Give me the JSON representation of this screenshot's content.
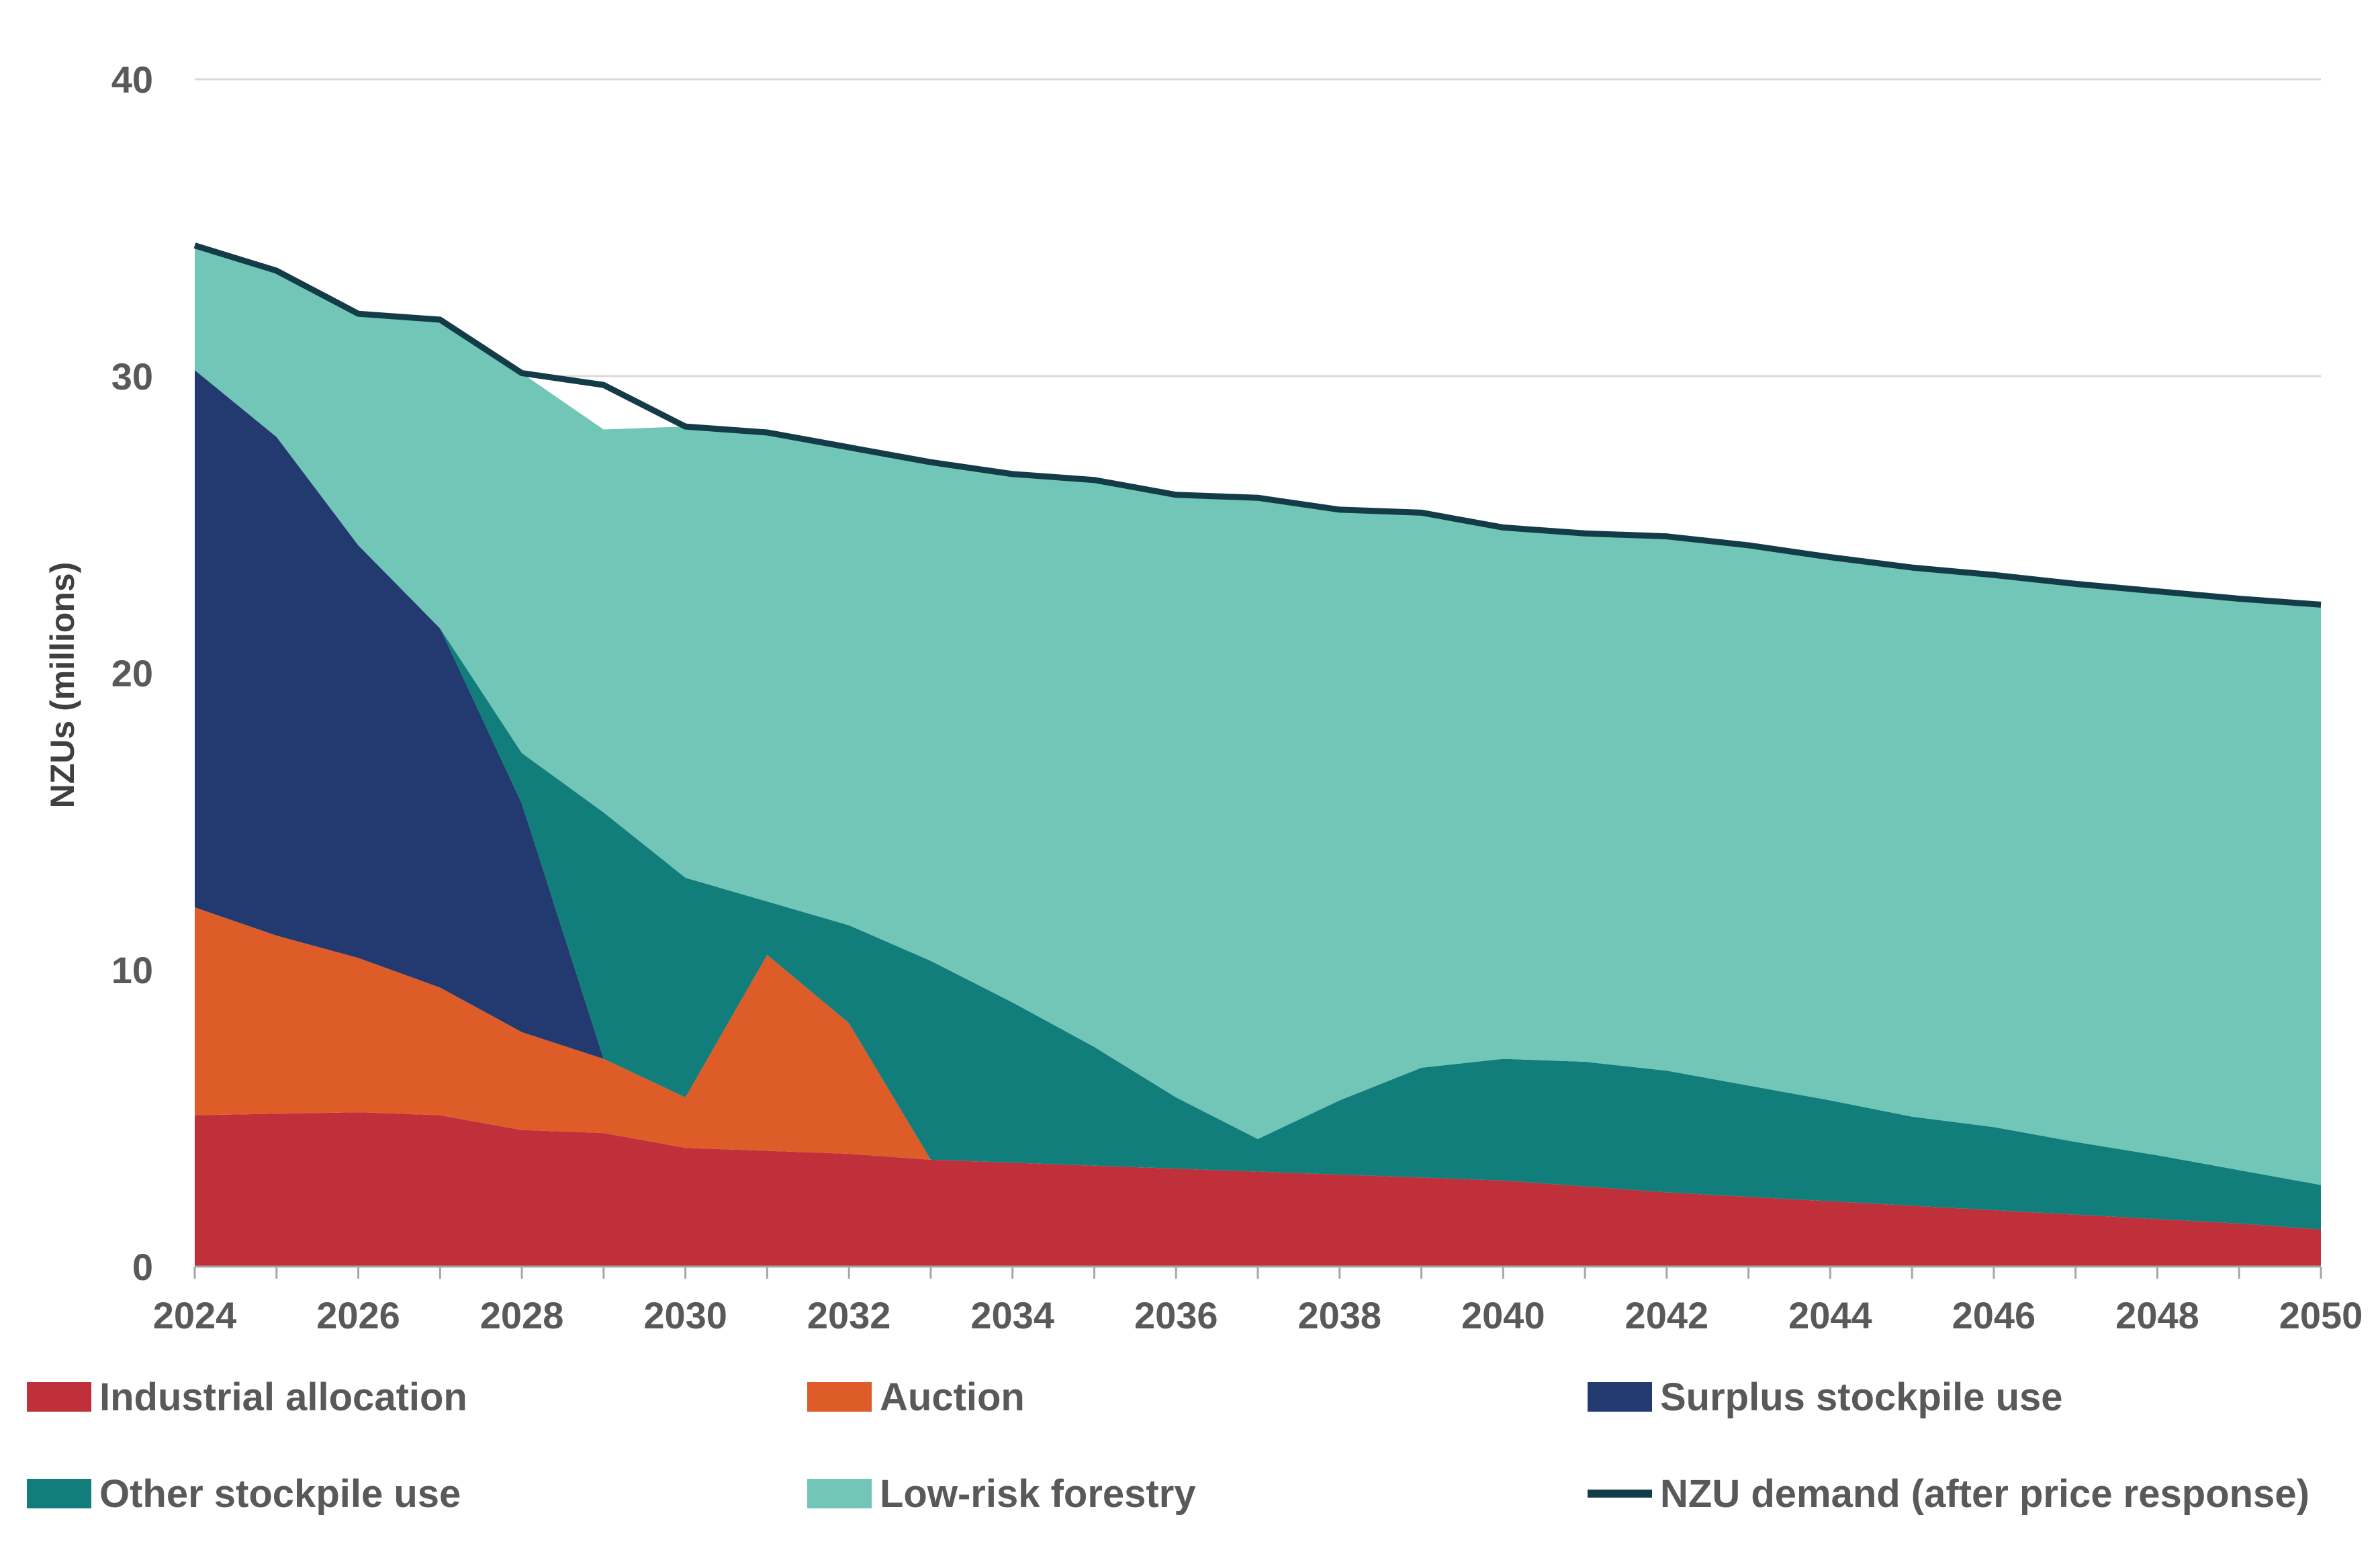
{
  "chart_data": {
    "type": "area",
    "stacked": true,
    "title": "",
    "xlabel": "",
    "ylabel": "NZUs (millions)",
    "ylim": [
      0,
      40
    ],
    "yticks": [
      0,
      10,
      20,
      30,
      40
    ],
    "xlim": [
      2024,
      2050
    ],
    "xticks": [
      2024,
      2026,
      2028,
      2030,
      2032,
      2034,
      2036,
      2038,
      2040,
      2042,
      2044,
      2046,
      2048,
      2050
    ],
    "x": [
      2024,
      2025,
      2026,
      2027,
      2028,
      2029,
      2030,
      2031,
      2032,
      2033,
      2034,
      2035,
      2036,
      2037,
      2038,
      2039,
      2040,
      2041,
      2042,
      2043,
      2044,
      2045,
      2046,
      2047,
      2048,
      2049,
      2050
    ],
    "series": [
      {
        "name": "Industrial allocation",
        "color": "#C0303A",
        "values": [
          5.1,
          5.15,
          5.2,
          5.1,
          4.6,
          4.5,
          4.0,
          3.9,
          3.8,
          3.6,
          3.5,
          3.4,
          3.3,
          3.2,
          3.1,
          3.0,
          2.9,
          2.7,
          2.5,
          2.35,
          2.2,
          2.05,
          1.9,
          1.75,
          1.6,
          1.45,
          1.25
        ]
      },
      {
        "name": "Auction",
        "color": "#DD5C27",
        "values": [
          7.0,
          6.0,
          5.2,
          4.3,
          3.3,
          2.5,
          1.7,
          6.6,
          4.4,
          0,
          0,
          0,
          0,
          0,
          0,
          0,
          0,
          0,
          0,
          0,
          0,
          0,
          0,
          0,
          0,
          0,
          0
        ]
      },
      {
        "name": "Surplus stockpile use",
        "color": "#223A70",
        "values": [
          18.1,
          16.8,
          13.9,
          12.1,
          7.7,
          0,
          0,
          0,
          0,
          0,
          0,
          0,
          0,
          0,
          0,
          0,
          0,
          0,
          0,
          0,
          0,
          0,
          0,
          0,
          0,
          0,
          0
        ]
      },
      {
        "name": "Other stockpile use",
        "color": "#117E7C",
        "values": [
          0,
          0,
          0,
          0,
          1.7,
          8.3,
          7.4,
          1.8,
          3.3,
          6.7,
          5.4,
          4.0,
          2.4,
          1.1,
          2.5,
          3.7,
          4.1,
          4.2,
          4.1,
          3.75,
          3.4,
          3.0,
          2.8,
          2.45,
          2.15,
          1.8,
          1.5
        ]
      },
      {
        "name": "Low-risk forestry",
        "color": "#71C6B8",
        "values": [
          4.2,
          5.6,
          7.8,
          10.4,
          12.8,
          12.9,
          15.2,
          15.8,
          16.1,
          16.8,
          17.8,
          19.1,
          20.3,
          21.6,
          19.9,
          18.7,
          17.9,
          17.8,
          18.0,
          18.2,
          18.3,
          18.5,
          18.6,
          18.8,
          19.0,
          19.25,
          19.55
        ]
      }
    ],
    "line": {
      "name": "NZU demand (after price response)",
      "color": "#133B48",
      "values": [
        34.4,
        33.55,
        32.1,
        31.9,
        30.1,
        29.7,
        28.3,
        28.1,
        27.6,
        27.1,
        26.7,
        26.5,
        26.0,
        25.9,
        25.5,
        25.4,
        24.9,
        24.7,
        24.6,
        24.3,
        23.9,
        23.55,
        23.3,
        23.0,
        22.75,
        22.5,
        22.3
      ]
    },
    "legend_position": "bottom"
  }
}
